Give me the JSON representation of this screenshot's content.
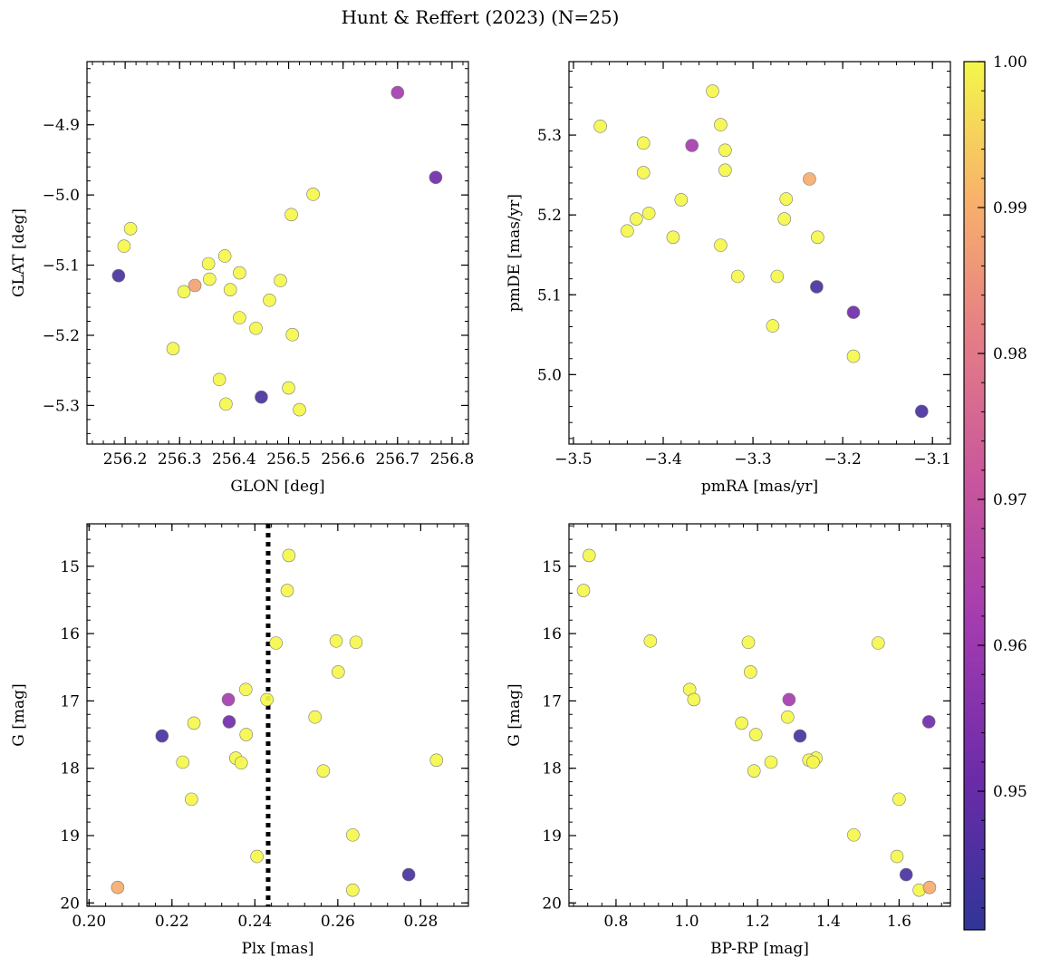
{
  "figure_title": "Hunt & Reffert (2023) (N=25)",
  "colorbar": {
    "vmin": 0.9405,
    "vmax": 1.0,
    "ticks": [
      0.95,
      0.96,
      0.97,
      0.98,
      0.99,
      1.0
    ],
    "tick_labels": [
      "0.95",
      "0.96",
      "0.97",
      "0.98",
      "0.99",
      "1.00"
    ],
    "colormap": "plasma"
  },
  "chart_data": [
    {
      "id": "galactic",
      "type": "scatter",
      "xlabel": "GLON [deg]",
      "ylabel": "GLAT [deg]",
      "xlim": [
        256.13,
        256.83
      ],
      "ylim": [
        -5.355,
        -4.81
      ],
      "xticks": [
        256.2,
        256.3,
        256.4,
        256.5,
        256.6,
        256.7,
        256.8
      ],
      "xtick_labels": [
        "256.2",
        "256.3",
        "256.4",
        "256.5",
        "256.6",
        "256.7",
        "256.8"
      ],
      "yticks": [
        -4.9,
        -5.0,
        -5.1,
        -5.2,
        -5.3
      ],
      "ytick_labels": [
        "−4.9",
        "−5.0",
        "−5.1",
        "−5.2",
        "−5.3"
      ],
      "points": [
        {
          "x": 256.7,
          "y": -4.854,
          "c": 0.962
        },
        {
          "x": 256.77,
          "y": -4.975,
          "c": 0.952
        },
        {
          "x": 256.545,
          "y": -4.999,
          "c": 1.0
        },
        {
          "x": 256.505,
          "y": -5.028,
          "c": 1.0
        },
        {
          "x": 256.21,
          "y": -5.048,
          "c": 1.0
        },
        {
          "x": 256.198,
          "y": -5.073,
          "c": 1.0
        },
        {
          "x": 256.188,
          "y": -5.115,
          "c": 0.945
        },
        {
          "x": 256.383,
          "y": -5.087,
          "c": 1.0
        },
        {
          "x": 256.353,
          "y": -5.098,
          "c": 1.0
        },
        {
          "x": 256.41,
          "y": -5.111,
          "c": 1.0
        },
        {
          "x": 256.355,
          "y": -5.12,
          "c": 1.0
        },
        {
          "x": 256.485,
          "y": -5.122,
          "c": 1.0
        },
        {
          "x": 256.328,
          "y": -5.129,
          "c": 0.988
        },
        {
          "x": 256.308,
          "y": -5.138,
          "c": 1.0
        },
        {
          "x": 256.393,
          "y": -5.135,
          "c": 1.0
        },
        {
          "x": 256.465,
          "y": -5.15,
          "c": 1.0
        },
        {
          "x": 256.41,
          "y": -5.175,
          "c": 1.0
        },
        {
          "x": 256.44,
          "y": -5.19,
          "c": 1.0
        },
        {
          "x": 256.507,
          "y": -5.199,
          "c": 1.0
        },
        {
          "x": 256.288,
          "y": -5.219,
          "c": 1.0
        },
        {
          "x": 256.373,
          "y": -5.263,
          "c": 1.0
        },
        {
          "x": 256.5,
          "y": -5.275,
          "c": 1.0
        },
        {
          "x": 256.45,
          "y": -5.288,
          "c": 0.945
        },
        {
          "x": 256.385,
          "y": -5.298,
          "c": 1.0
        },
        {
          "x": 256.52,
          "y": -5.306,
          "c": 1.0
        }
      ]
    },
    {
      "id": "proper-motion",
      "type": "scatter",
      "xlabel": "pmRA [mas/yr]",
      "ylabel": "pmDE [mas/yr]",
      "xlim": [
        -3.505,
        -3.08
      ],
      "ylim": [
        4.913,
        5.392
      ],
      "xticks": [
        -3.5,
        -3.4,
        -3.3,
        -3.2,
        -3.1
      ],
      "xtick_labels": [
        "−3.5",
        "−3.4",
        "−3.3",
        "−3.2",
        "−3.1"
      ],
      "yticks": [
        5.0,
        5.1,
        5.2,
        5.3
      ],
      "ytick_labels": [
        "5.0",
        "5.1",
        "5.2",
        "5.3"
      ],
      "points": [
        {
          "x": -3.345,
          "y": 5.355,
          "c": 1.0
        },
        {
          "x": -3.47,
          "y": 5.311,
          "c": 1.0
        },
        {
          "x": -3.336,
          "y": 5.313,
          "c": 1.0
        },
        {
          "x": -3.422,
          "y": 5.29,
          "c": 1.0
        },
        {
          "x": -3.368,
          "y": 5.287,
          "c": 0.962
        },
        {
          "x": -3.331,
          "y": 5.281,
          "c": 1.0
        },
        {
          "x": -3.422,
          "y": 5.253,
          "c": 1.0
        },
        {
          "x": -3.331,
          "y": 5.256,
          "c": 1.0
        },
        {
          "x": -3.237,
          "y": 5.245,
          "c": 0.99
        },
        {
          "x": -3.263,
          "y": 5.22,
          "c": 1.0
        },
        {
          "x": -3.38,
          "y": 5.219,
          "c": 1.0
        },
        {
          "x": -3.416,
          "y": 5.202,
          "c": 1.0
        },
        {
          "x": -3.43,
          "y": 5.195,
          "c": 1.0
        },
        {
          "x": -3.265,
          "y": 5.195,
          "c": 1.0
        },
        {
          "x": -3.44,
          "y": 5.18,
          "c": 1.0
        },
        {
          "x": -3.389,
          "y": 5.172,
          "c": 1.0
        },
        {
          "x": -3.228,
          "y": 5.172,
          "c": 1.0
        },
        {
          "x": -3.336,
          "y": 5.162,
          "c": 1.0
        },
        {
          "x": -3.317,
          "y": 5.123,
          "c": 1.0
        },
        {
          "x": -3.273,
          "y": 5.123,
          "c": 1.0
        },
        {
          "x": -3.229,
          "y": 5.11,
          "c": 0.945
        },
        {
          "x": -3.188,
          "y": 5.078,
          "c": 0.952
        },
        {
          "x": -3.278,
          "y": 5.061,
          "c": 1.0
        },
        {
          "x": -3.188,
          "y": 5.023,
          "c": 1.0
        },
        {
          "x": -3.112,
          "y": 4.954,
          "c": 0.945
        }
      ]
    },
    {
      "id": "plx-g",
      "type": "scatter",
      "xlabel": "Plx [mas]",
      "ylabel": "G [mag]",
      "xlim": [
        0.1995,
        0.2915
      ],
      "ylim": [
        20.05,
        14.37
      ],
      "y_inverted": true,
      "vline": 0.2432,
      "xticks": [
        0.2,
        0.22,
        0.24,
        0.26,
        0.28
      ],
      "xtick_labels": [
        "0.20",
        "0.22",
        "0.24",
        "0.26",
        "0.28"
      ],
      "yticks": [
        15,
        16,
        17,
        18,
        19,
        20
      ],
      "ytick_labels": [
        "15",
        "16",
        "17",
        "18",
        "19",
        "20"
      ],
      "points": [
        {
          "x": 0.2482,
          "y": 14.84,
          "c": 1.0
        },
        {
          "x": 0.2478,
          "y": 15.36,
          "c": 1.0
        },
        {
          "x": 0.2451,
          "y": 16.14,
          "c": 1.0
        },
        {
          "x": 0.2596,
          "y": 16.11,
          "c": 1.0
        },
        {
          "x": 0.2644,
          "y": 16.13,
          "c": 1.0
        },
        {
          "x": 0.2601,
          "y": 16.57,
          "c": 1.0
        },
        {
          "x": 0.2378,
          "y": 16.83,
          "c": 1.0
        },
        {
          "x": 0.2429,
          "y": 16.98,
          "c": 1.0
        },
        {
          "x": 0.2336,
          "y": 16.98,
          "c": 0.962
        },
        {
          "x": 0.2545,
          "y": 17.24,
          "c": 1.0
        },
        {
          "x": 0.2338,
          "y": 17.31,
          "c": 0.952
        },
        {
          "x": 0.2253,
          "y": 17.33,
          "c": 1.0
        },
        {
          "x": 0.2176,
          "y": 17.52,
          "c": 0.945
        },
        {
          "x": 0.2379,
          "y": 17.5,
          "c": 1.0
        },
        {
          "x": 0.2354,
          "y": 17.85,
          "c": 1.0
        },
        {
          "x": 0.2367,
          "y": 17.92,
          "c": 1.0
        },
        {
          "x": 0.2226,
          "y": 17.91,
          "c": 1.0
        },
        {
          "x": 0.2838,
          "y": 17.88,
          "c": 1.0
        },
        {
          "x": 0.2565,
          "y": 18.04,
          "c": 1.0
        },
        {
          "x": 0.2247,
          "y": 18.46,
          "c": 1.0
        },
        {
          "x": 0.2636,
          "y": 18.99,
          "c": 1.0
        },
        {
          "x": 0.2405,
          "y": 19.31,
          "c": 1.0
        },
        {
          "x": 0.2771,
          "y": 19.58,
          "c": 0.945
        },
        {
          "x": 0.2069,
          "y": 19.77,
          "c": 0.99
        },
        {
          "x": 0.2636,
          "y": 19.81,
          "c": 1.0
        }
      ]
    },
    {
      "id": "cmd",
      "type": "scatter",
      "xlabel": "BP-RP [mag]",
      "ylabel": "G [mag]",
      "xlim": [
        0.667,
        1.745
      ],
      "ylim": [
        20.05,
        14.37
      ],
      "y_inverted": true,
      "xticks": [
        0.8,
        1.0,
        1.2,
        1.4,
        1.6
      ],
      "xtick_labels": [
        "0.8",
        "1.0",
        "1.2",
        "1.4",
        "1.6"
      ],
      "yticks": [
        15,
        16,
        17,
        18,
        19,
        20
      ],
      "ytick_labels": [
        "15",
        "16",
        "17",
        "18",
        "19",
        "20"
      ],
      "points": [
        {
          "x": 0.724,
          "y": 14.84,
          "c": 1.0
        },
        {
          "x": 0.708,
          "y": 15.36,
          "c": 1.0
        },
        {
          "x": 0.897,
          "y": 16.11,
          "c": 1.0
        },
        {
          "x": 1.174,
          "y": 16.13,
          "c": 1.0
        },
        {
          "x": 1.541,
          "y": 16.14,
          "c": 1.0
        },
        {
          "x": 1.18,
          "y": 16.57,
          "c": 1.0
        },
        {
          "x": 1.008,
          "y": 16.83,
          "c": 1.0
        },
        {
          "x": 1.02,
          "y": 16.98,
          "c": 1.0
        },
        {
          "x": 1.289,
          "y": 16.98,
          "c": 0.962
        },
        {
          "x": 1.285,
          "y": 17.24,
          "c": 1.0
        },
        {
          "x": 1.684,
          "y": 17.31,
          "c": 0.952
        },
        {
          "x": 1.155,
          "y": 17.33,
          "c": 1.0
        },
        {
          "x": 1.195,
          "y": 17.5,
          "c": 1.0
        },
        {
          "x": 1.32,
          "y": 17.52,
          "c": 0.945
        },
        {
          "x": 1.365,
          "y": 17.85,
          "c": 1.0
        },
        {
          "x": 1.345,
          "y": 17.88,
          "c": 1.0
        },
        {
          "x": 1.357,
          "y": 17.91,
          "c": 1.0
        },
        {
          "x": 1.238,
          "y": 17.91,
          "c": 1.0
        },
        {
          "x": 1.19,
          "y": 18.04,
          "c": 1.0
        },
        {
          "x": 1.6,
          "y": 18.46,
          "c": 1.0
        },
        {
          "x": 1.472,
          "y": 18.99,
          "c": 1.0
        },
        {
          "x": 1.594,
          "y": 19.31,
          "c": 1.0
        },
        {
          "x": 1.62,
          "y": 19.58,
          "c": 0.945
        },
        {
          "x": 1.686,
          "y": 19.77,
          "c": 0.99
        },
        {
          "x": 1.657,
          "y": 19.81,
          "c": 1.0
        }
      ]
    }
  ]
}
